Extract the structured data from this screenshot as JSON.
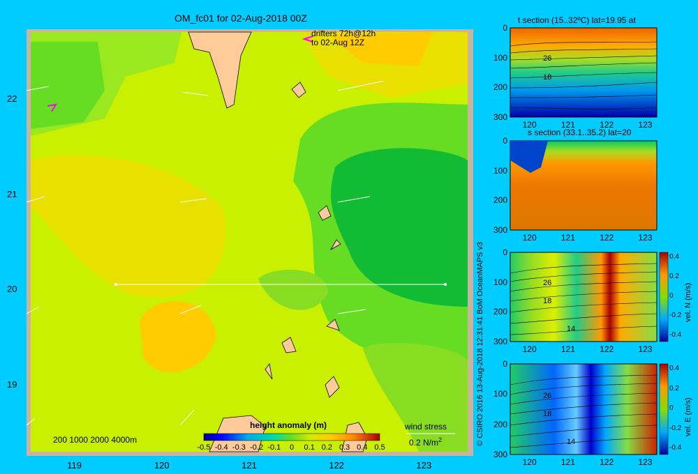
{
  "main": {
    "title": "OM_fc01 for 02-Aug-2018 00Z",
    "drifters_line1": "drifters 72h@12h",
    "drifters_line2": "to 02-Aug 12Z",
    "depth_legend": "200  1000  2000  4000m",
    "wind_label": "wind stress",
    "wind_scale": "0.2 N/m",
    "wind_scale_sup": "2",
    "colorbar_title": "height anomaly (m)",
    "colorbar_ticks": [
      "-0.5",
      "-0.4",
      "-0.3",
      "-0.2",
      "-0.1",
      "0",
      "0.1",
      "0.2",
      "0.3",
      "0.4",
      "0.5"
    ],
    "colors": {
      "low": "#00008b",
      "mid_low": "#00aaee",
      "zero": "#88ee00",
      "mid_high": "#ffaa00",
      "high": "#aa0000",
      "land": "#ffcc99",
      "frame": "#c8b4a0"
    }
  },
  "panels": {
    "t_title": "t section (15..32ºC) lat=19.95 at",
    "s_title": "s section (33.1..35.2) lat=20",
    "v_label": "vel. N (m/s)",
    "u_label": "vel. E (m/s)",
    "contour_labels": [
      "26",
      "18",
      "26",
      "18",
      "14",
      "26",
      "18",
      "14"
    ],
    "vel_ticks": [
      "0.4",
      "0.2",
      "0",
      "-0.2",
      "-0.4"
    ]
  },
  "copyright": "© CSIRO 2016   13-Aug-2018 12:31:41 BoM OceanMAPS v3",
  "chart_data": [
    {
      "type": "heatmap",
      "title": "OM_fc01 for 02-Aug-2018 00Z",
      "xlabel": "",
      "ylabel": "",
      "x_ticks": [
        119,
        120,
        121,
        122,
        123
      ],
      "y_ticks": [
        19,
        20,
        21,
        22
      ],
      "xlim": [
        118.5,
        123.5
      ],
      "ylim": [
        18.3,
        22.7
      ],
      "colorbar": {
        "label": "height anomaly (m)",
        "range": [
          -0.5,
          0.5
        ]
      },
      "section_line": {
        "lat": 20,
        "lon_from": 119.5,
        "lon_to": 123.2
      }
    },
    {
      "type": "heatmap",
      "title": "t section (15..32ºC) lat=19.95 at",
      "x_ticks": [
        120,
        121,
        122,
        123
      ],
      "y_ticks": [
        0,
        100,
        200,
        300
      ],
      "ylim": [
        300,
        0
      ]
    },
    {
      "type": "heatmap",
      "title": "s section (33.1..35.2) lat=20",
      "x_ticks": [
        120,
        121,
        122,
        123
      ],
      "y_ticks": [
        0,
        100,
        200,
        300
      ],
      "ylim": [
        300,
        0
      ]
    },
    {
      "type": "heatmap",
      "title": "",
      "colorbar": {
        "label": "vel. N (m/s)",
        "range": [
          -0.4,
          0.4
        ]
      },
      "x_ticks": [
        120,
        121,
        122,
        123
      ],
      "y_ticks": [
        0,
        100,
        200,
        300
      ],
      "ylim": [
        300,
        0
      ]
    },
    {
      "type": "heatmap",
      "title": "",
      "colorbar": {
        "label": "vel. E (m/s)",
        "range": [
          -0.4,
          0.4
        ]
      },
      "x_ticks": [
        120,
        121,
        122,
        123
      ],
      "y_ticks": [
        0,
        100,
        200,
        300
      ],
      "ylim": [
        300,
        0
      ]
    }
  ]
}
